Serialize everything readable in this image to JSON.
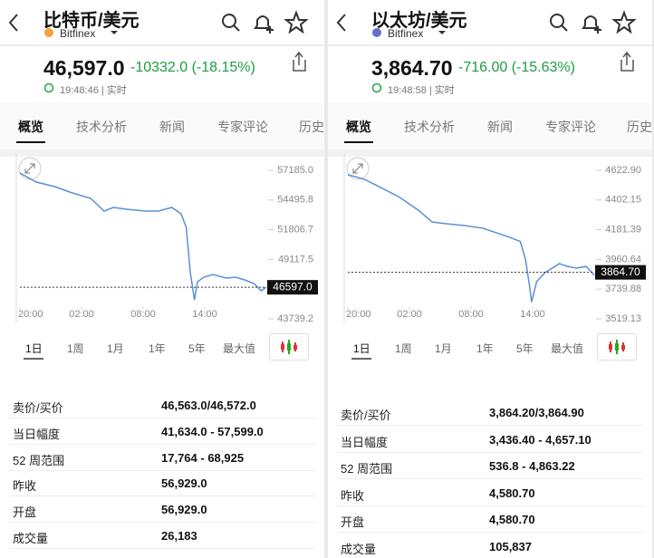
{
  "panels": [
    {
      "title": "比特币/美元",
      "exchange": "Bitfinex",
      "price": "46,597.0",
      "change": "-10332.0 (-18.15%)",
      "time": "19:48:46 | 实时",
      "tabs": [
        "概览",
        "技术分析",
        "新闻",
        "专家评论",
        "历史"
      ],
      "ranges": [
        "1日",
        "1周",
        "1月",
        "1年",
        "5年",
        "最大值"
      ],
      "stats": [
        [
          "卖价/买价",
          "46,563.0/46,572.0"
        ],
        [
          "当日幅度",
          "41,634.0 - 57,599.0"
        ],
        [
          "52 周范围",
          "17,764 - 68,925"
        ],
        [
          "昨收",
          "56,929.0"
        ],
        [
          "开盘",
          "56,929.0"
        ],
        [
          "成交量",
          "26,183"
        ]
      ]
    },
    {
      "title": "以太坊/美元",
      "exchange": "Bitfinex",
      "price": "3,864.70",
      "change": "-716.00 (-15.63%)",
      "time": "19:48:58 | 实时",
      "tabs": [
        "概览",
        "技术分析",
        "新闻",
        "专家评论",
        "历史"
      ],
      "ranges": [
        "1日",
        "1周",
        "1月",
        "1年",
        "5年",
        "最大值"
      ],
      "stats": [
        [
          "卖价/买价",
          "3,864.20/3,864.90"
        ],
        [
          "当日幅度",
          "3,436.40 - 4,657.10"
        ],
        [
          "52 周范围",
          "536.8 - 4,863.22"
        ],
        [
          "昨收",
          "4,580.70"
        ],
        [
          "开盘",
          "4,580.70"
        ],
        [
          "成交量",
          "105,837"
        ]
      ]
    }
  ],
  "chart_data": [
    {
      "type": "line",
      "color": "#5b8fd6",
      "x": [
        0,
        1.6,
        3.4,
        5.1,
        6.9,
        8.2,
        9.1,
        10.4,
        12.2,
        13.5,
        14.8,
        15.7,
        16.2,
        16.6,
        17.0,
        17.3,
        17.9,
        18.8,
        20.1,
        21.0,
        21.9,
        22.8,
        23.5,
        24
      ],
      "values": [
        56939,
        56119,
        55709,
        55135,
        54643,
        53495,
        53823,
        53659,
        53495,
        53495,
        53823,
        53249,
        52019,
        47919,
        45459,
        47099,
        47509,
        47755,
        47427,
        47509,
        47263,
        46935,
        46279,
        46607
      ],
      "xlim": [
        0,
        24
      ],
      "ylim": [
        43739.2,
        57185
      ],
      "xticks": [
        {
          "value": 0,
          "label": "20:00"
        },
        {
          "value": 6,
          "label": "02:00"
        },
        {
          "value": 12,
          "label": "08:00"
        },
        {
          "value": 18,
          "label": "14:00"
        }
      ],
      "yticks": [
        {
          "value": 57185,
          "label": "57185.0"
        },
        54495.8,
        51806.7,
        49117.5,
        43739.2
      ],
      "current": {
        "value": 46597,
        "label": "46597.0"
      }
    },
    {
      "type": "line",
      "color": "#5b8fd6",
      "x": [
        0,
        1.6,
        3.3,
        5.0,
        6.9,
        8.2,
        9.5,
        11.3,
        13.1,
        14.4,
        15.7,
        16.8,
        17.3,
        17.7,
        17.9,
        18.4,
        19.2,
        20.6,
        21.4,
        22.3,
        23.2,
        23.8,
        24
      ],
      "values": [
        4589.9,
        4556.8,
        4490.7,
        4424.6,
        4325.4,
        4239.5,
        4226.3,
        4213.1,
        4193.3,
        4160.2,
        4127.2,
        4094.1,
        3961.9,
        3763.6,
        3644.6,
        3796.6,
        3862.7,
        3928.8,
        3909,
        3895.8,
        3909,
        3862.7,
        3842.9
      ],
      "xlim": [
        0,
        24
      ],
      "ylim": [
        3519.13,
        4622.9
      ],
      "xticks": [
        {
          "value": 0,
          "label": "20:00"
        },
        {
          "value": 6,
          "label": "02:00"
        },
        {
          "value": 12,
          "label": "08:00"
        },
        {
          "value": 18,
          "label": "14:00"
        }
      ],
      "yticks": [
        {
          "value": 4622.9,
          "label": "4622.90"
        },
        4402.15,
        4181.39,
        3960.64,
        3739.88,
        3519.13
      ],
      "current": {
        "value": 3864.7,
        "label": "3864.70"
      }
    }
  ]
}
